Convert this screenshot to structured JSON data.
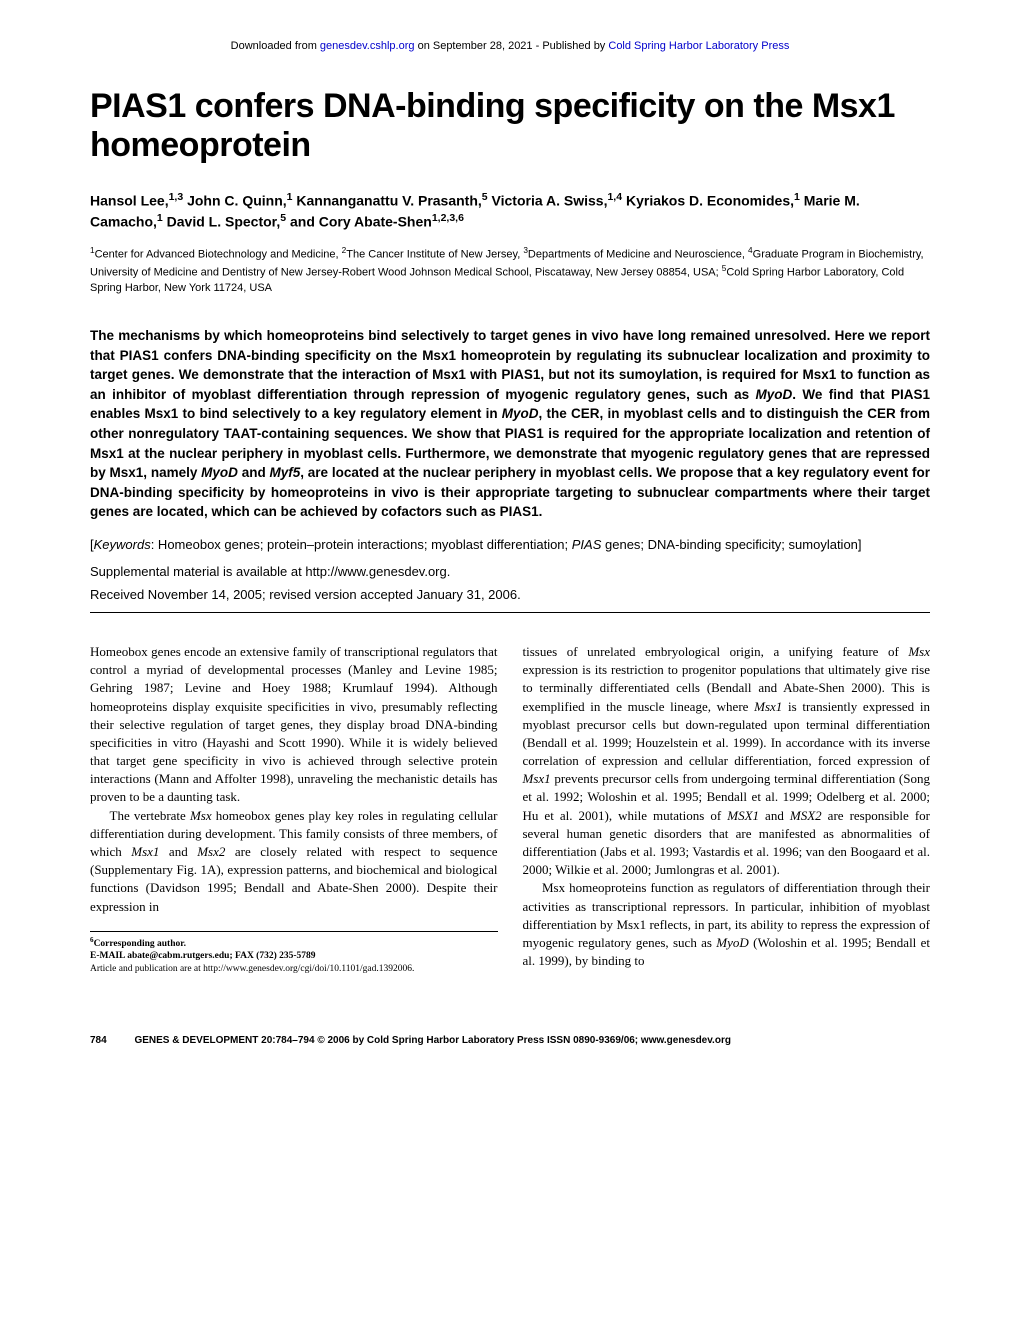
{
  "header": {
    "prefix": "Downloaded from ",
    "link1": "genesdev.cshlp.org",
    "mid": " on September 28, 2021 - Published by ",
    "link2": "Cold Spring Harbor Laboratory Press"
  },
  "title": "PIAS1 confers DNA-binding specificity on the Msx1 homeoprotein",
  "authors_html": "Hansol Lee,<sup>1,3</sup> John C. Quinn,<sup>1</sup> Kannanganattu V. Prasanth,<sup>5</sup> Victoria A. Swiss,<sup>1,4</sup> Kyriakos D. Economides,<sup>1</sup> Marie M. Camacho,<sup>1</sup> David L. Spector,<sup>5</sup> and Cory Abate-Shen<sup>1,2,3,6</sup>",
  "affiliations_html": "<sup>1</sup>Center for Advanced Biotechnology and Medicine, <sup>2</sup>The Cancer Institute of New Jersey, <sup>3</sup>Departments of Medicine and Neuroscience, <sup>4</sup>Graduate Program in Biochemistry, University of Medicine and Dentistry of New Jersey-Robert Wood Johnson Medical School, Piscataway, New Jersey 08854, USA; <sup>5</sup>Cold Spring Harbor Laboratory, Cold Spring Harbor, New York 11724, USA",
  "abstract_html": "The mechanisms by which homeoproteins bind selectively to target genes in vivo have long remained unresolved. Here we report that PIAS1 confers DNA-binding specificity on the Msx1 homeoprotein by regulating its subnuclear localization and proximity to target genes. We demonstrate that the interaction of Msx1 with PIAS1, but not its sumoylation, is required for Msx1 to function as an inhibitor of myoblast differentiation through repression of myogenic regulatory genes, such as <i>MyoD</i>. We find that PIAS1 enables Msx1 to bind selectively to a key regulatory element in <i>MyoD</i>, the CER, in myoblast cells and to distinguish the CER from other nonregulatory TAAT-containing sequences. We show that PIAS1 is required for the appropriate localization and retention of Msx1 at the nuclear periphery in myoblast cells. Furthermore, we demonstrate that myogenic regulatory genes that are repressed by Msx1, namely <i>MyoD</i> and <i>Myf5</i>, are located at the nuclear periphery in myoblast cells. We propose that a key regulatory event for DNA-binding specificity by homeoproteins in vivo is their appropriate targeting to subnuclear compartments where their target genes are located, which can be achieved by cofactors such as PIAS1.",
  "keywords_html": "[<i>Keywords</i>: Homeobox genes; protein–protein interactions; myoblast differentiation; <i>PIAS</i> genes; DNA-binding specificity; sumoylation]",
  "supplemental": "Supplemental material is available at http://www.genesdev.org.",
  "received": "Received November 14, 2005; revised version accepted January 31, 2006.",
  "body": {
    "p1_html": "Homeobox genes encode an extensive family of transcriptional regulators that control a myriad of developmental processes (Manley and Levine 1985; Gehring 1987; Levine and Hoey 1988; Krumlauf 1994). Although homeoproteins display exquisite specificities in vivo, presumably reflecting their selective regulation of target genes, they display broad DNA-binding specificities in vitro (Hayashi and Scott 1990). While it is widely believed that target gene specificity in vivo is achieved through selective protein interactions (Mann and Affolter 1998), unraveling the mechanistic details has proven to be a daunting task.",
    "p2_html": "The vertebrate <i>Msx</i> homeobox genes play key roles in regulating cellular differentiation during development. This family consists of three members, of which <i>Msx1</i> and <i>Msx2</i> are closely related with respect to sequence (Supplementary Fig. 1A), expression patterns, and biochemical and biological functions (Davidson 1995; Bendall and Abate-Shen 2000). Despite their expression in",
    "p3_html": "tissues of unrelated embryological origin, a unifying feature of <i>Msx</i> expression is its restriction to progenitor populations that ultimately give rise to terminally differentiated cells (Bendall and Abate-Shen 2000). This is exemplified in the muscle lineage, where <i>Msx1</i> is transiently expressed in myoblast precursor cells but down-regulated upon terminal differentiation (Bendall et al. 1999; Houzelstein et al. 1999). In accordance with its inverse correlation of expression and cellular differentiation, forced expression of <i>Msx1</i> prevents precursor cells from undergoing terminal differentiation (Song et al. 1992; Woloshin et al. 1995; Bendall et al. 1999; Odelberg et al. 2000; Hu et al. 2001), while mutations of <i>MSX1</i> and <i>MSX2</i> are responsible for several human genetic disorders that are manifested as abnormalities of differentiation (Jabs et al. 1993; Vastardis et al. 1996; van den Boogaard et al. 2000; Wilkie et al. 2000; Jumlongras et al. 2001).",
    "p4_html": "Msx homeoproteins function as regulators of differentiation through their activities as transcriptional repressors. In particular, inhibition of myoblast differentiation by Msx1 reflects, in part, its ability to repress the expression of myogenic regulatory genes, such as <i>MyoD</i> (Woloshin et al. 1995; Bendall et al. 1999), by binding to"
  },
  "footnote": {
    "corresponding_html": "<sup>6</sup>Corresponding author.",
    "email": "E-MAIL abate@cabm.rutgers.edu; FAX (732) 235-5789",
    "article": "Article and publication are at http://www.genesdev.org/cgi/doi/10.1101/gad.1392006."
  },
  "footer": {
    "page": "784",
    "citation": "GENES & DEVELOPMENT 20:784–794 © 2006 by Cold Spring Harbor Laboratory Press ISSN 0890-9369/06; www.genesdev.org"
  },
  "colors": {
    "link": "#0000cc",
    "text": "#000000",
    "background": "#ffffff"
  }
}
